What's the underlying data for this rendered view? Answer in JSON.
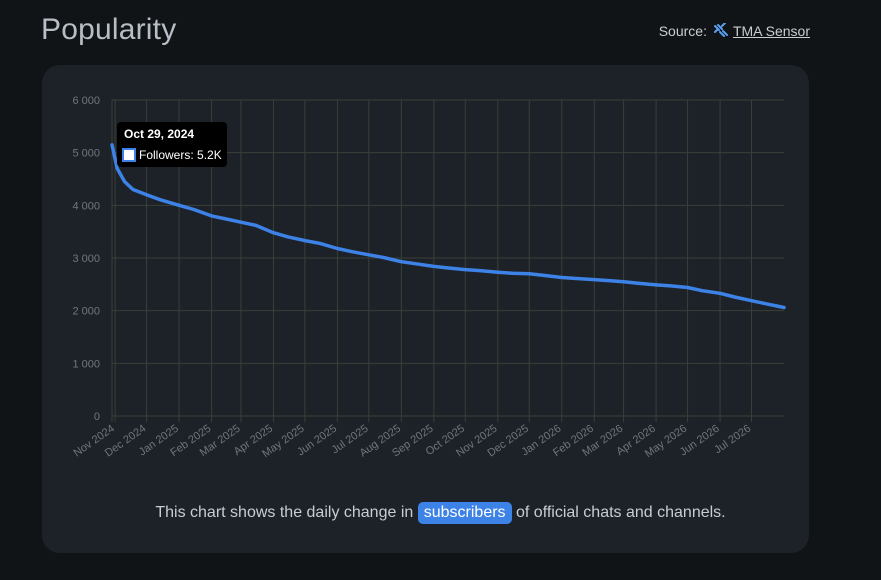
{
  "header": {
    "title": "Popularity",
    "source_label": "Source:",
    "source_link": "TMA Sensor",
    "source_icon": "tma-sensor-icon"
  },
  "tooltip": {
    "date": "Oct 29, 2024",
    "series_label": "Followers: 5.2K"
  },
  "caption": {
    "before": "This chart shows the daily change in",
    "highlight": "subscribers",
    "after": "of official chats and channels."
  },
  "colors": {
    "background": "#111417",
    "card": "#1d2228",
    "line": "#3d82e6",
    "grid": "#3a3f38",
    "tick_text": "#6f767e"
  },
  "chart_data": {
    "type": "line",
    "title": "",
    "xlabel": "",
    "ylabel": "",
    "ylim": [
      0,
      6000
    ],
    "y_ticks": [
      "0",
      "1 000",
      "2 000",
      "3 000",
      "4 000",
      "5 000",
      "6 000"
    ],
    "x_ticks": [
      "Nov 2024",
      "Dec 2024",
      "Jan 2025",
      "Feb 2025",
      "Mar 2025",
      "Apr 2025",
      "May 2025",
      "Jun 2025",
      "Jul 2025",
      "Aug 2025",
      "Sep 2025",
      "Oct 2025",
      "Nov 2025",
      "Dec 2025",
      "Jan 2026",
      "Feb 2026",
      "Mar 2026",
      "Apr 2026",
      "May 2026",
      "Jun 2026",
      "Jul 2026"
    ],
    "grid": true,
    "series": [
      {
        "name": "Followers",
        "points": [
          [
            "2024-10-29",
            5150
          ],
          [
            "2024-11-03",
            4700
          ],
          [
            "2024-11-10",
            4450
          ],
          [
            "2024-11-18",
            4300
          ],
          [
            "2024-12-01",
            4200
          ],
          [
            "2024-12-15",
            4100
          ],
          [
            "2025-01-01",
            4000
          ],
          [
            "2025-01-15",
            3920
          ],
          [
            "2025-02-01",
            3800
          ],
          [
            "2025-02-15",
            3740
          ],
          [
            "2025-03-01",
            3680
          ],
          [
            "2025-03-15",
            3620
          ],
          [
            "2025-04-01",
            3480
          ],
          [
            "2025-04-15",
            3400
          ],
          [
            "2025-05-01",
            3330
          ],
          [
            "2025-05-15",
            3280
          ],
          [
            "2025-06-01",
            3180
          ],
          [
            "2025-06-15",
            3120
          ],
          [
            "2025-07-01",
            3060
          ],
          [
            "2025-07-15",
            3010
          ],
          [
            "2025-08-01",
            2930
          ],
          [
            "2025-08-15",
            2890
          ],
          [
            "2025-09-01",
            2840
          ],
          [
            "2025-09-15",
            2810
          ],
          [
            "2025-10-01",
            2780
          ],
          [
            "2025-10-15",
            2760
          ],
          [
            "2025-11-01",
            2730
          ],
          [
            "2025-11-15",
            2710
          ],
          [
            "2025-12-01",
            2700
          ],
          [
            "2025-12-15",
            2670
          ],
          [
            "2026-01-01",
            2630
          ],
          [
            "2026-01-15",
            2610
          ],
          [
            "2026-02-01",
            2590
          ],
          [
            "2026-02-15",
            2570
          ],
          [
            "2026-03-01",
            2550
          ],
          [
            "2026-03-15",
            2520
          ],
          [
            "2026-04-01",
            2490
          ],
          [
            "2026-04-15",
            2470
          ],
          [
            "2026-05-01",
            2440
          ],
          [
            "2026-05-15",
            2380
          ],
          [
            "2026-06-01",
            2330
          ],
          [
            "2026-06-15",
            2260
          ],
          [
            "2026-07-01",
            2190
          ],
          [
            "2026-07-15",
            2130
          ],
          [
            "2026-08-01",
            2060
          ]
        ]
      }
    ]
  }
}
